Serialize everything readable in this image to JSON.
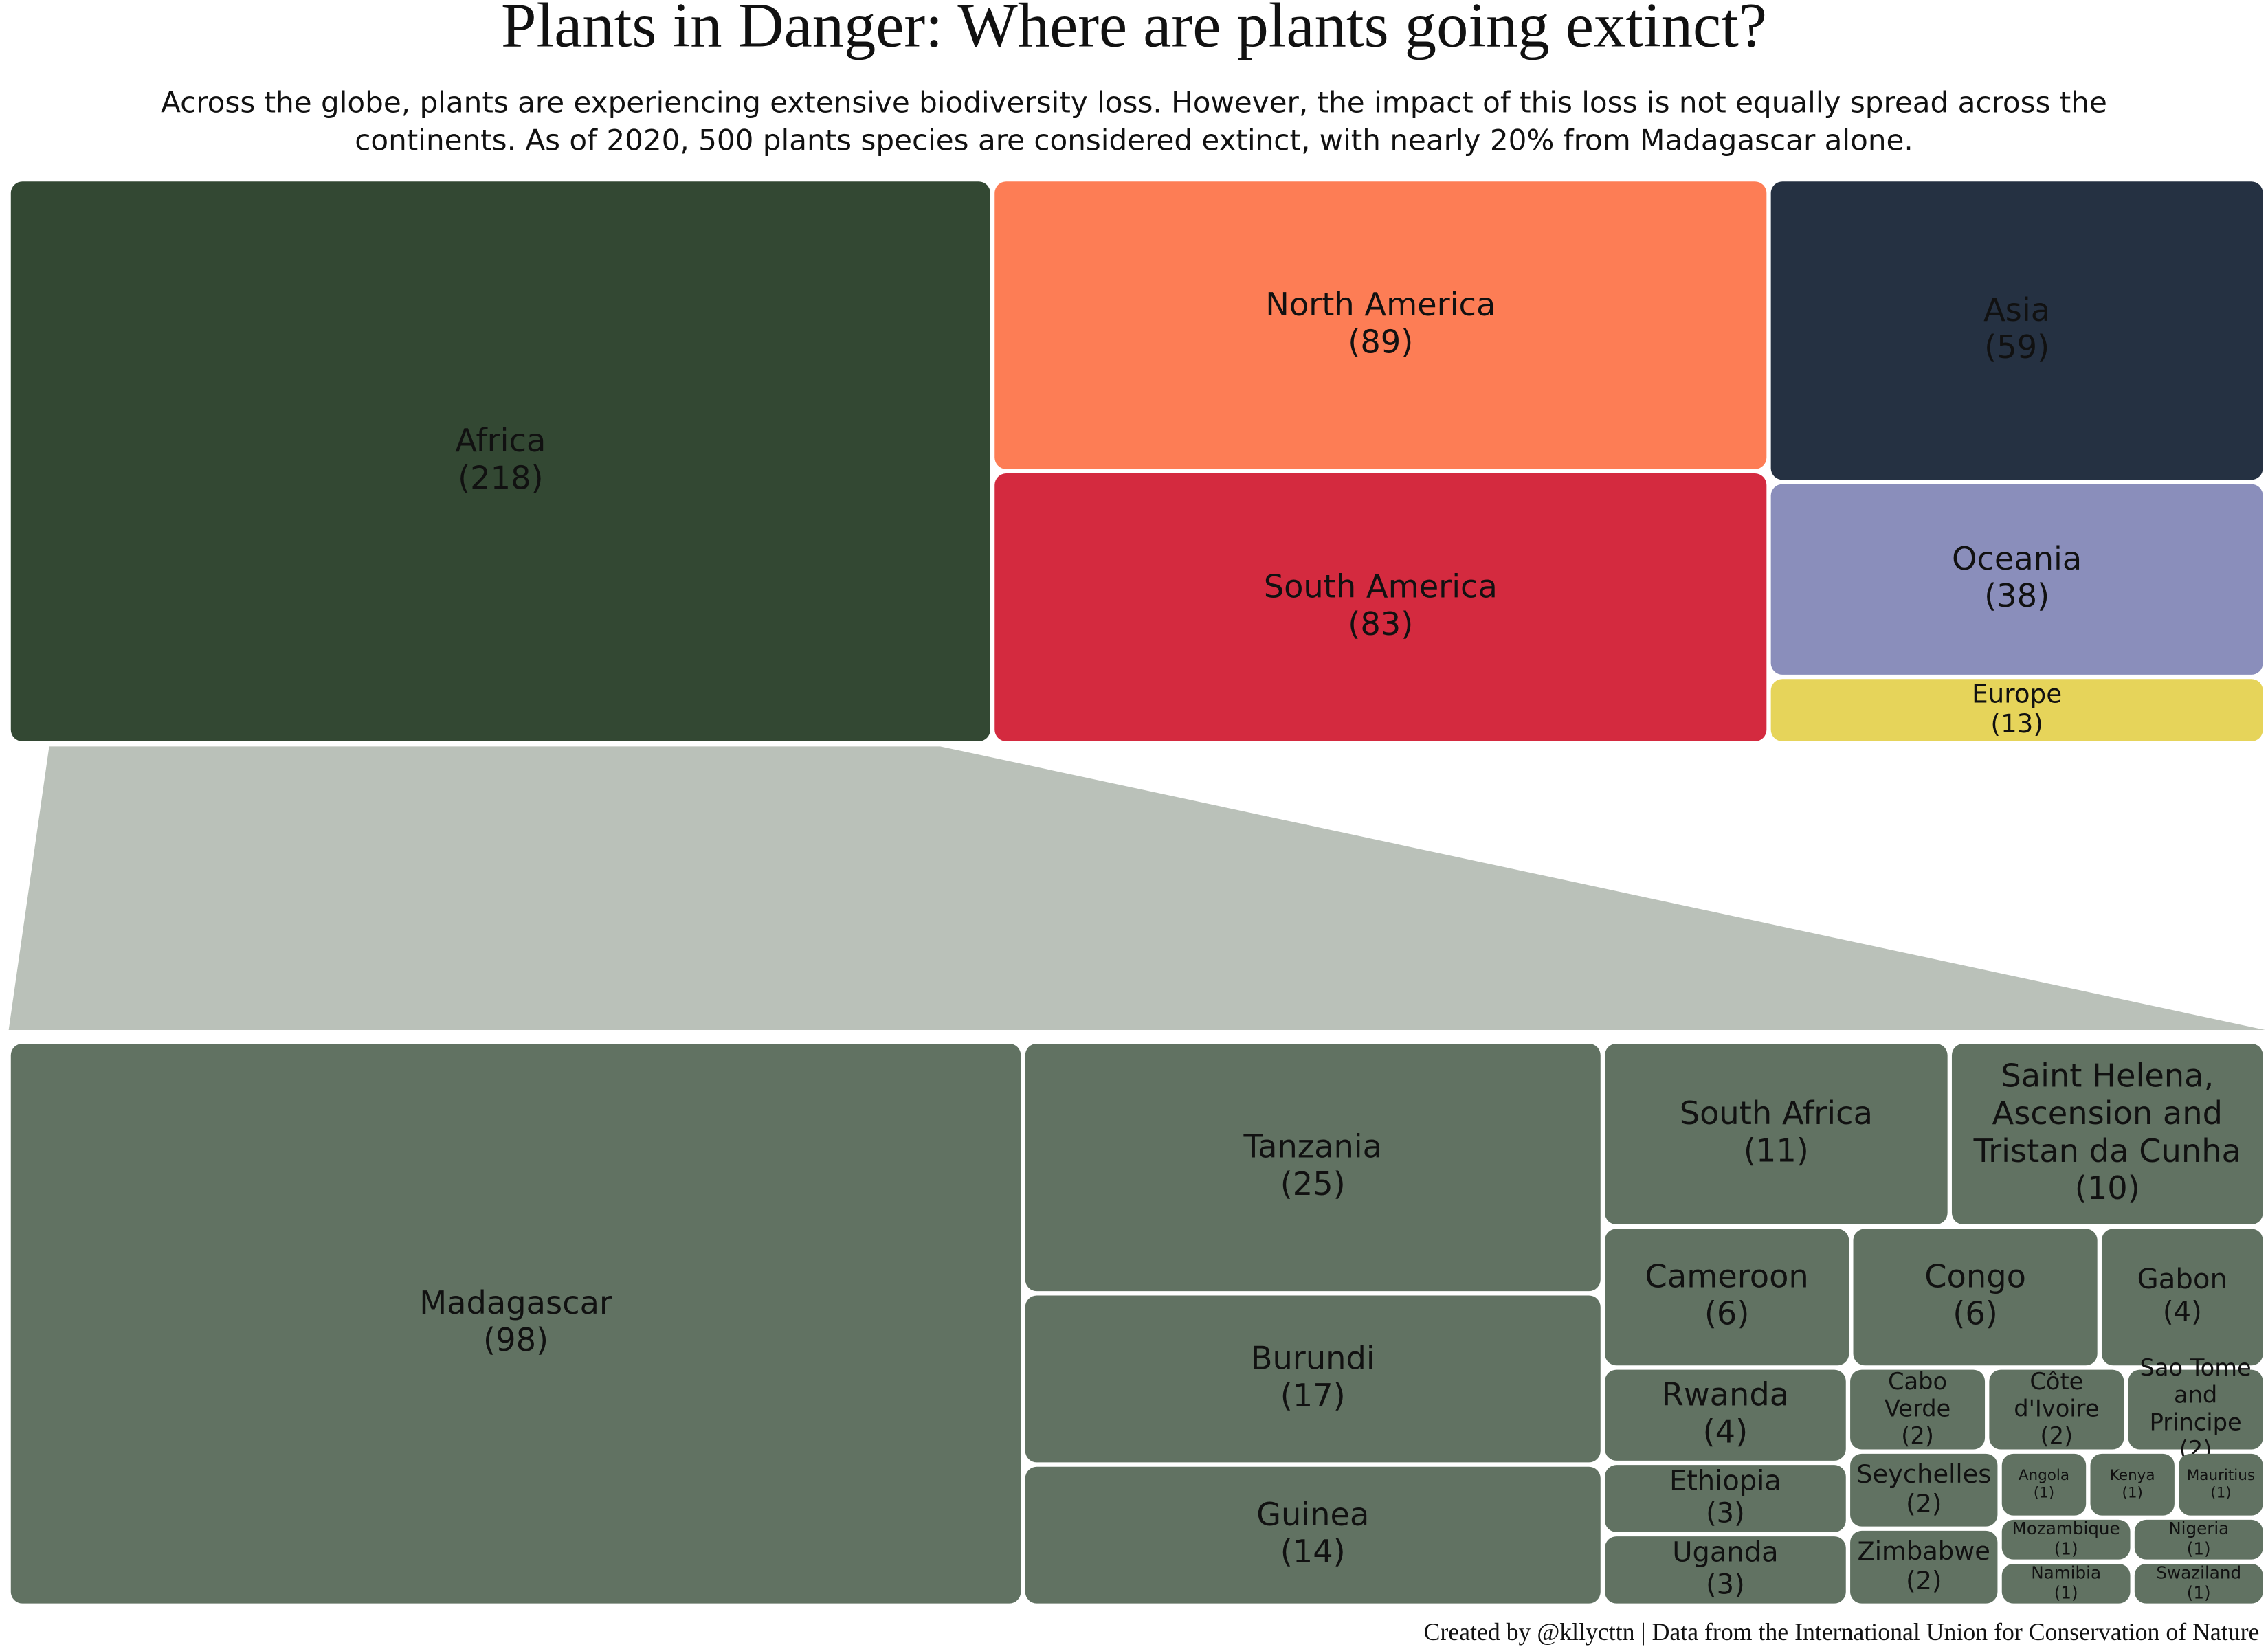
{
  "title": "Plants in Danger: Where are plants going extinct?",
  "subtitle": "Across the globe, plants are experiencing extensive biodiversity loss. However, the impact of this loss is not equally spread across the continents. As of 2020, 500 plants species are considered extinct, with nearly 20% from Madagascar alone.",
  "caption": "Created by @kllycttn | Data from the International Union for Conservation of Nature",
  "chart_data": [
    {
      "type": "treemap",
      "categories": [
        "Africa",
        "North America",
        "South America",
        "Asia",
        "Oceania",
        "Europe"
      ],
      "values": [
        218,
        89,
        83,
        59,
        38,
        13
      ],
      "value_labels": [
        "(218)",
        "(89)",
        "(83)",
        "(59)",
        "(38)",
        "(13)"
      ],
      "colors": [
        "#334833",
        "#fd7d55",
        "#d42a3f",
        "#253142",
        "#8a8ebb",
        "#e6d45a"
      ]
    },
    {
      "type": "treemap",
      "categories": [
        "Madagascar",
        "Tanzania",
        "Burundi",
        "Guinea",
        "South Africa",
        "Saint Helena, Ascension and Tristan da Cunha",
        "Cameroon",
        "Congo",
        "Gabon",
        "Rwanda",
        "Ethiopia",
        "Uganda",
        "Cabo Verde",
        "Côte d'Ivoire",
        "Sao Tome and Principe",
        "Seychelles",
        "Zimbabwe",
        "Angola",
        "Kenya",
        "Mauritius",
        "Mozambique",
        "Nigeria",
        "Namibia",
        "Swaziland"
      ],
      "values": [
        98,
        25,
        17,
        14,
        11,
        10,
        6,
        6,
        4,
        4,
        3,
        3,
        2,
        2,
        2,
        2,
        2,
        1,
        1,
        1,
        1,
        1,
        1,
        1
      ],
      "value_labels": [
        "(98)",
        "(25)",
        "(17)",
        "(14)",
        "(11)",
        "(10)",
        "(6)",
        "(6)",
        "(4)",
        "(4)",
        "(3)",
        "(3)",
        "(2)",
        "(2)",
        "(2)",
        "(2)",
        "(2)",
        "(1)",
        "(1)",
        "(1)",
        "(1)",
        "(1)",
        "(1)",
        "(1)"
      ],
      "color": "#617262"
    }
  ]
}
